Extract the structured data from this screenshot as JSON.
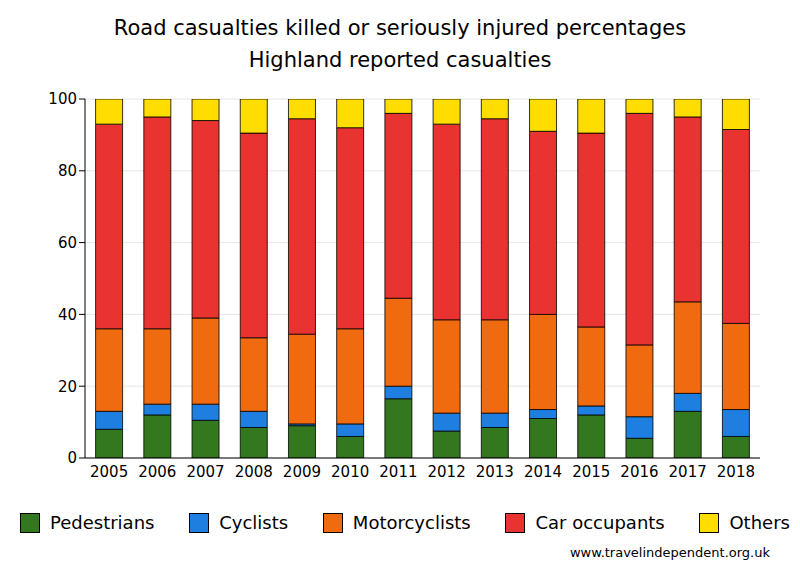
{
  "chart_data": {
    "type": "bar",
    "title": "Road casualties killed or seriously injured percentages",
    "subtitle": "Highland reported casualties",
    "source": "www.travelindependent.org.uk",
    "categories": [
      "2005",
      "2006",
      "2007",
      "2008",
      "2009",
      "2010",
      "2011",
      "2012",
      "2013",
      "2014",
      "2015",
      "2016",
      "2017",
      "2018"
    ],
    "series": [
      {
        "name": "Pedestrians",
        "color": "#33771f",
        "values": [
          8,
          12,
          10.5,
          8.5,
          9,
          6,
          16.5,
          7.5,
          8.5,
          11,
          12,
          5.5,
          13,
          6
        ]
      },
      {
        "name": "Cyclists",
        "color": "#1e7fe0",
        "values": [
          5,
          3,
          4.5,
          4.5,
          0.5,
          3.5,
          3.5,
          5,
          4,
          2.5,
          2.5,
          6,
          5,
          7.5
        ]
      },
      {
        "name": "Motorcyclists",
        "color": "#f06a10",
        "values": [
          23,
          21,
          24,
          20.5,
          25,
          26.5,
          24.5,
          26,
          26,
          26.5,
          22,
          20,
          25.5,
          24
        ]
      },
      {
        "name": "Car occupants",
        "color": "#e83330",
        "values": [
          57,
          59,
          55,
          57,
          60,
          56,
          51.5,
          54.5,
          56,
          51,
          54,
          64.5,
          51.5,
          54
        ]
      },
      {
        "name": "Others",
        "color": "#ffdd00",
        "values": [
          7,
          5,
          6,
          9.5,
          5.5,
          8,
          4,
          7,
          5.5,
          9,
          9.5,
          4,
          5,
          8.5
        ]
      }
    ],
    "ylim": [
      0,
      100
    ],
    "yticks": [
      0,
      20,
      40,
      60,
      80,
      100
    ],
    "stacked": true,
    "grid": true,
    "legend": "bottom"
  }
}
